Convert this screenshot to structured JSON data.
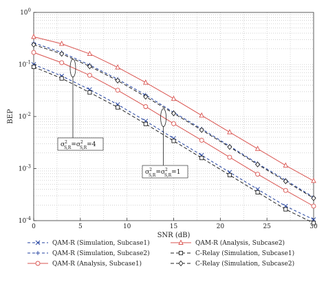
{
  "chart_data": {
    "type": "line",
    "xlabel": "SNR (dB)",
    "ylabel": "BEP",
    "xlim": [
      0,
      30
    ],
    "ylim": [
      0.0001,
      1
    ],
    "yscale": "log",
    "grid": true,
    "legend_placement": "bottom",
    "x_ticks": [
      "0",
      "5",
      "10",
      "15",
      "20",
      "25",
      "30"
    ],
    "y_ticks": [
      {
        "base": "10",
        "exp": "0"
      },
      {
        "base": "10",
        "exp": "-1"
      },
      {
        "base": "10",
        "exp": "-2"
      },
      {
        "base": "10",
        "exp": "-3"
      },
      {
        "base": "10",
        "exp": "-4"
      }
    ],
    "x": [
      0,
      3,
      6,
      9,
      12,
      15,
      18,
      21,
      24,
      27,
      30
    ],
    "series": [
      {
        "name": "QAM-R (Simulation, Subcase1)",
        "color": "#1f3f9f",
        "dash": "4,3",
        "marker": "x",
        "values": [
          0.1,
          0.06,
          0.033,
          0.017,
          0.0082,
          0.0038,
          0.0018,
          0.00085,
          0.0004,
          0.00019,
          0.000105
        ]
      },
      {
        "name": "QAM-R (Simulation, Subcase2)",
        "color": "#1f3f9f",
        "dash": "4,3",
        "marker": "plus",
        "values": [
          0.26,
          0.17,
          0.098,
          0.052,
          0.026,
          0.012,
          0.0058,
          0.0027,
          0.00125,
          0.0006,
          0.00028
        ]
      },
      {
        "name": "QAM-R (Analysis, Subcase1)",
        "color": "#d9534f",
        "dash": "",
        "marker": "circle",
        "values": [
          0.17,
          0.108,
          0.062,
          0.032,
          0.0155,
          0.0073,
          0.0035,
          0.00165,
          0.00078,
          0.00038,
          0.00019
        ]
      },
      {
        "name": "QAM-R (Analysis, Subcase2)",
        "color": "#d9534f",
        "dash": "",
        "marker": "triangle",
        "values": [
          0.34,
          0.25,
          0.16,
          0.088,
          0.045,
          0.022,
          0.0105,
          0.005,
          0.0024,
          0.00115,
          0.00058
        ]
      },
      {
        "name": "C-Relay (Simulation, Subcase1)",
        "color": "#222222",
        "dash": "5,3",
        "marker": "square",
        "values": [
          0.09,
          0.054,
          0.029,
          0.015,
          0.0072,
          0.0034,
          0.0016,
          0.00075,
          0.00035,
          0.000165,
          9e-05
        ]
      },
      {
        "name": "C-Relay (Simulation, Subcase2)",
        "color": "#222222",
        "dash": "5,3",
        "marker": "diamond",
        "values": [
          0.24,
          0.16,
          0.092,
          0.049,
          0.024,
          0.0115,
          0.0055,
          0.0026,
          0.0012,
          0.00057,
          0.00027
        ]
      }
    ],
    "annotations": [
      {
        "text_pre": "σ",
        "sup": "2",
        "sub": "S,R",
        "eq": "=",
        "text_pre2": "σ",
        "sup2": "2",
        "sub2": "S,R",
        "tail": "=4"
      },
      {
        "text_pre": "σ",
        "sup": "2",
        "sub": "S,R",
        "eq": "=",
        "text_pre2": "σ",
        "sup2": "2",
        "sub2": "S,R",
        "tail": "=1"
      }
    ]
  }
}
